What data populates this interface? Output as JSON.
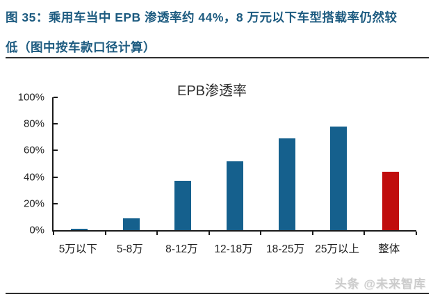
{
  "header": {
    "figure_title_line1": "图 35：乘用车当中 EPB 渗透率约 44%，8 万元以下车型搭载率仍然较",
    "figure_title_line2": "低（图中按车款口径计算）",
    "title_color": "#1D5B80"
  },
  "chart_data": {
    "type": "bar",
    "title": "EPB渗透率",
    "categories": [
      "5万以下",
      "5-8万",
      "8-12万",
      "12-18万",
      "18-25万",
      "25万以上",
      "整体"
    ],
    "values": [
      1,
      9,
      37,
      52,
      69,
      78,
      44
    ],
    "unit": "%",
    "ylim": [
      0,
      100
    ],
    "yticks": [
      0,
      20,
      40,
      60,
      80,
      100
    ],
    "ytick_suffix": "%",
    "xlabel": "",
    "ylabel": "",
    "grid": false,
    "legend": "none",
    "bar_color": "#15608D",
    "highlight_color": "#C00D0D",
    "highlight_index": 6,
    "highlight_category": "整体"
  },
  "watermark": "头条 @未来智库"
}
